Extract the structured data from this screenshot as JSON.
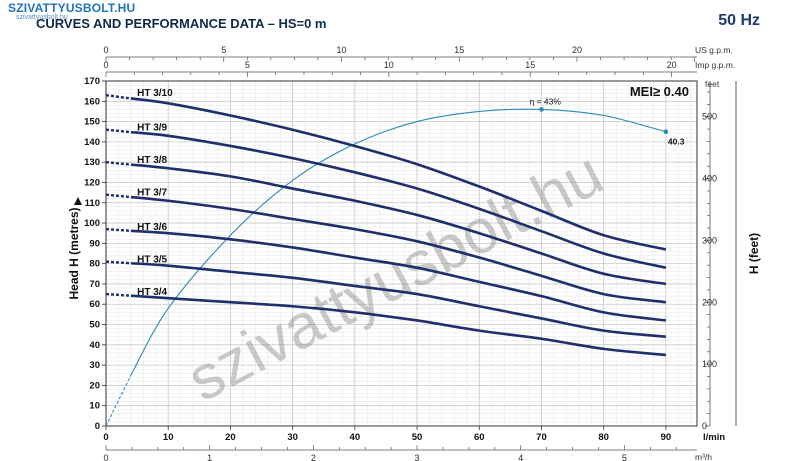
{
  "header": {
    "brand": "SZIVATTYUSBOLT.HU",
    "brand_sub": "szivattyusbolt.hu",
    "title": "CURVES AND PERFORMANCE DATA  –  HS=0 m",
    "frequency": "50 Hz"
  },
  "watermark": "szivattyusbolt.hu",
  "colors": {
    "curve": "#1f2f6b",
    "efficiency": "#2a8ab5",
    "grid": "#c8c8c8",
    "minor_grid": "#e4e4e4"
  },
  "chart_data": {
    "type": "line",
    "xlabel": "l/min",
    "ylabel": "Head H (metres)",
    "y2label": "H (feet)",
    "y2unit": "feet",
    "xlim": [
      0,
      95
    ],
    "ylim": [
      0,
      170
    ],
    "x_ticks": [
      0,
      10,
      20,
      30,
      40,
      50,
      60,
      70,
      80,
      90
    ],
    "y_ticks": [
      0,
      10,
      20,
      30,
      40,
      50,
      60,
      70,
      80,
      90,
      100,
      110,
      120,
      130,
      140,
      150,
      160,
      170
    ],
    "feet_ticks": [
      0,
      100,
      200,
      300,
      400,
      500
    ],
    "secondary_axes": [
      {
        "unit": "US g.p.m.",
        "ticks": [
          0,
          5,
          10,
          15,
          20
        ]
      },
      {
        "unit": "Imp g.p.m.",
        "ticks": [
          0,
          5,
          10,
          15,
          20
        ]
      },
      {
        "unit": "m³/h",
        "ticks": [
          0,
          1,
          2,
          3,
          4,
          5
        ]
      }
    ],
    "series": [
      {
        "name": "HT 3/10",
        "x": [
          0,
          10,
          20,
          30,
          40,
          50,
          60,
          70,
          80,
          90
        ],
        "y": [
          163,
          159,
          153,
          146,
          138,
          129,
          118,
          106,
          94,
          87
        ]
      },
      {
        "name": "HT 3/9",
        "x": [
          0,
          10,
          20,
          30,
          40,
          50,
          60,
          70,
          80,
          90
        ],
        "y": [
          146,
          143,
          138,
          132,
          125,
          117,
          107,
          96,
          85,
          78
        ]
      },
      {
        "name": "HT 3/8",
        "x": [
          0,
          10,
          20,
          30,
          40,
          50,
          60,
          70,
          80,
          90
        ],
        "y": [
          130,
          127,
          123,
          117,
          111,
          104,
          95,
          85,
          75,
          70
        ]
      },
      {
        "name": "HT 3/7",
        "x": [
          0,
          10,
          20,
          30,
          40,
          50,
          60,
          70,
          80,
          90
        ],
        "y": [
          114,
          111,
          107,
          102,
          97,
          91,
          83,
          74,
          65,
          61
        ]
      },
      {
        "name": "HT 3/6",
        "x": [
          0,
          10,
          20,
          30,
          40,
          50,
          60,
          70,
          80,
          90
        ],
        "y": [
          97,
          95,
          92,
          88,
          83,
          78,
          71,
          64,
          56,
          52
        ]
      },
      {
        "name": "HT 3/5",
        "x": [
          0,
          10,
          20,
          30,
          40,
          50,
          60,
          70,
          80,
          90
        ],
        "y": [
          81,
          79,
          76,
          73,
          69,
          65,
          59,
          53,
          47,
          44
        ]
      },
      {
        "name": "HT 3/4",
        "x": [
          0,
          10,
          20,
          30,
          40,
          50,
          60,
          70,
          80,
          90
        ],
        "y": [
          65,
          63,
          61,
          59,
          56,
          52,
          47,
          43,
          38,
          35
        ]
      }
    ],
    "efficiency_curve": {
      "x": [
        0,
        4,
        10,
        20,
        30,
        40,
        50,
        60,
        70,
        80,
        90
      ],
      "y": [
        0,
        25,
        58,
        94,
        121,
        139,
        150,
        155,
        156,
        153,
        145
      ]
    },
    "annotations": {
      "max_eff": "η = 43%",
      "max_eff_x": 70,
      "max_eff_y": 156,
      "end_value": "40.3",
      "end_x": 90,
      "end_y": 145,
      "mei": "MEI≥ 0.40"
    }
  }
}
